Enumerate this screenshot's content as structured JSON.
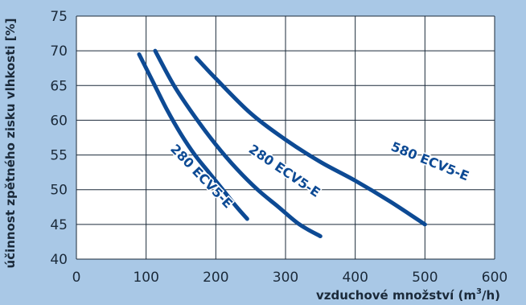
{
  "chart_data": {
    "type": "line",
    "xlabel": "vzduchové množství (m",
    "xlabel_sup": "3",
    "xlabel_tail": "/h)",
    "ylabel": "účinnost zpětného zisku vlhkosti [%]",
    "xlim": [
      0,
      600
    ],
    "ylim": [
      40,
      75
    ],
    "xticks": [
      "0",
      "100",
      "200",
      "300",
      "400",
      "500",
      "600"
    ],
    "yticks": [
      "40",
      "45",
      "50",
      "55",
      "60",
      "65",
      "70",
      "75"
    ],
    "grid": true,
    "series": [
      {
        "name": "280 ECV5-E",
        "x": [
          90,
          110,
          130,
          150,
          170,
          190,
          210,
          230,
          245
        ],
        "y": [
          69.5,
          65.5,
          61.5,
          58,
          55,
          52.5,
          50,
          47.5,
          45.8
        ]
      },
      {
        "name": "280 ECV5-E",
        "x": [
          113,
          140,
          170,
          200,
          230,
          260,
          290,
          320,
          350
        ],
        "y": [
          70,
          65,
          60.5,
          56.5,
          53,
          50,
          47.5,
          45,
          43.3
        ]
      },
      {
        "name": "580 ECV5-E",
        "x": [
          172,
          200,
          250,
          300,
          350,
          400,
          450,
          500
        ],
        "y": [
          69,
          66,
          61,
          57.2,
          54,
          51.3,
          48.3,
          45
        ]
      }
    ],
    "labels": [
      {
        "text": "280 ECV5-E",
        "x": 175,
        "y": 51.5,
        "angle": 46
      },
      {
        "text": "280 ECV5-E",
        "x": 295,
        "y": 52.2,
        "angle": 34
      },
      {
        "text": "580 ECV5-E",
        "x": 505,
        "y": 53.5,
        "angle": 22
      }
    ]
  }
}
